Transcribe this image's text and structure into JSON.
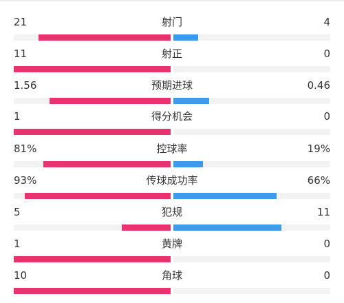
{
  "colors": {
    "home_bar": "#e8336e",
    "away_bar": "#3d9aec",
    "track": "#f2f2f2",
    "text": "#333333"
  },
  "stats": [
    {
      "label": "射门",
      "left": "21",
      "right": "4",
      "left_fraction": 0.84,
      "right_fraction": 0.16
    },
    {
      "label": "射正",
      "left": "11",
      "right": "0",
      "left_fraction": 1.0,
      "right_fraction": 0.0
    },
    {
      "label": "预期进球",
      "left": "1.56",
      "right": "0.46",
      "left_fraction": 0.77,
      "right_fraction": 0.23
    },
    {
      "label": "得分机会",
      "left": "1",
      "right": "0",
      "left_fraction": 1.0,
      "right_fraction": 0.0
    },
    {
      "label": "控球率",
      "left": "81%",
      "right": "19%",
      "left_fraction": 0.81,
      "right_fraction": 0.19
    },
    {
      "label": "传球成功率",
      "left": "93%",
      "right": "66%",
      "left_fraction": 0.93,
      "right_fraction": 0.66
    },
    {
      "label": "犯规",
      "left": "5",
      "right": "11",
      "left_fraction": 0.31,
      "right_fraction": 0.69
    },
    {
      "label": "黄牌",
      "left": "1",
      "right": "0",
      "left_fraction": 1.0,
      "right_fraction": 0.0
    },
    {
      "label": "角球",
      "left": "10",
      "right": "0",
      "left_fraction": 1.0,
      "right_fraction": 0.0
    }
  ]
}
